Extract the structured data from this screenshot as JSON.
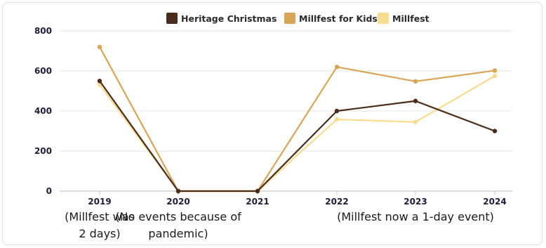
{
  "chart_data": {
    "type": "line",
    "title": "",
    "xlabel": "",
    "ylabel": "",
    "categories": [
      "2019",
      "2020",
      "2021",
      "2022",
      "2023",
      "2024"
    ],
    "ylim": [
      0,
      800
    ],
    "yticks": [
      0,
      200,
      400,
      600,
      800
    ],
    "grid": true,
    "legend_position": "top",
    "series": [
      {
        "name": "Heritage Christmas",
        "color": "#4a2c1c",
        "values": [
          550,
          0,
          0,
          400,
          450,
          300
        ]
      },
      {
        "name": "Millfest for Kids",
        "color": "#d9a556",
        "values": [
          720,
          0,
          0,
          620,
          548,
          602
        ]
      },
      {
        "name": "Millfest",
        "color": "#f7dc8f",
        "values": [
          532,
          0,
          0,
          358,
          345,
          575
        ]
      }
    ],
    "annotations": [
      {
        "category": "2019",
        "lines": [
          "(Millfest was",
          "2 days)"
        ]
      },
      {
        "category": "2020",
        "lines": [
          "(No events because of",
          "pandemic)"
        ]
      },
      {
        "category": "2023",
        "lines": [
          "(Millfest now a 1-day event)"
        ]
      }
    ]
  }
}
